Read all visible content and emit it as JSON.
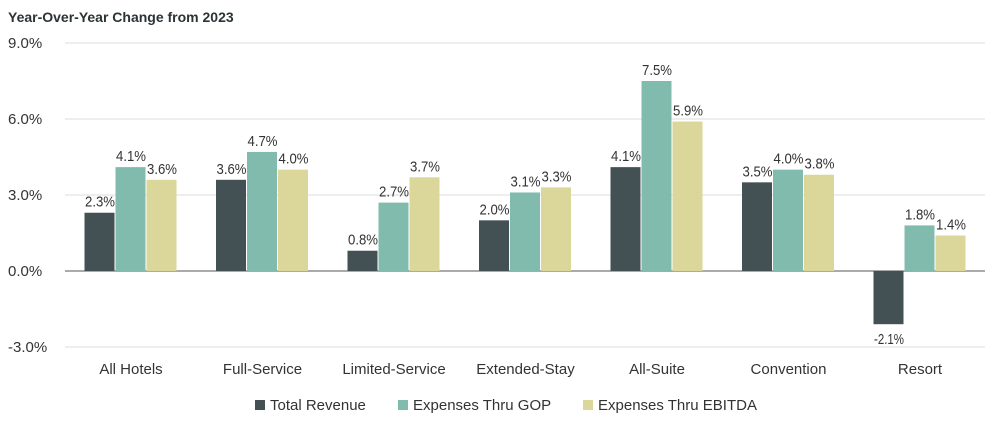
{
  "chart_data": {
    "type": "bar",
    "title": "Year-Over-Year Change from 2023",
    "categories": [
      "All Hotels",
      "Full-Service",
      "Limited-Service",
      "Extended-Stay",
      "All-Suite",
      "Convention",
      "Resort"
    ],
    "series": [
      {
        "name": "Total Revenue",
        "color": "#435154",
        "values": [
          2.3,
          3.6,
          0.8,
          2.0,
          4.1,
          3.5,
          -2.1
        ]
      },
      {
        "name": "Expenses Thru GOP",
        "color": "#80bbad",
        "values": [
          4.1,
          4.7,
          2.7,
          3.1,
          7.5,
          4.0,
          1.8
        ]
      },
      {
        "name": "Expenses Thru EBITDA",
        "color": "#dbd79b",
        "values": [
          3.6,
          4.0,
          3.7,
          3.3,
          5.9,
          3.8,
          1.4
        ]
      }
    ],
    "yticks": [
      "9.0%",
      "6.0%",
      "3.0%",
      "0.0%",
      "-3.0%"
    ],
    "ytick_values": [
      9,
      6,
      3,
      0,
      -3
    ],
    "ylim": [
      -3,
      9
    ],
    "grid": true,
    "legend": "bottom",
    "label_suffix": "%"
  }
}
